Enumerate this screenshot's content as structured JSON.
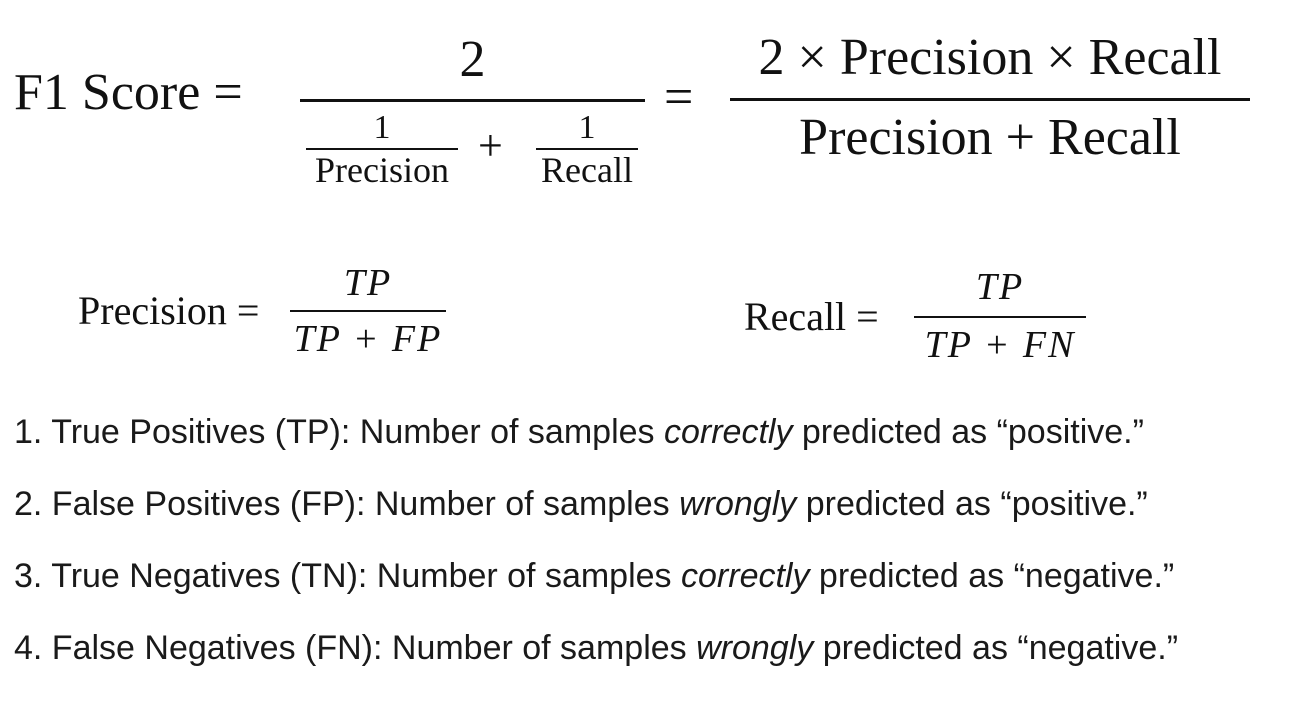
{
  "f1": {
    "lhs": "F1 Score =",
    "equals": "=",
    "numerator": "2",
    "frac1_num": "1",
    "frac1_den": "Precision",
    "plus": "+",
    "frac2_num": "1",
    "frac2_den": "Recall",
    "right_numerator": "2 × Precision × Recall",
    "right_denominator": "Precision + Recall"
  },
  "precision": {
    "label": "Precision =",
    "numerator": "TP",
    "denominator": "TP + FP"
  },
  "recall": {
    "label": "Recall =",
    "numerator": "TP",
    "denominator": "TP + FN"
  },
  "definitions": [
    {
      "prefix": "1. True Positives (TP): Number of samples ",
      "emphasis": "correctly",
      "suffix": " predicted as “positive.”"
    },
    {
      "prefix": "2. False Positives (FP): Number of samples ",
      "emphasis": "wrongly",
      "suffix": " predicted as “positive.”"
    },
    {
      "prefix": "3. True Negatives (TN): Number of samples ",
      "emphasis": "correctly",
      "suffix": " predicted as “negative.”"
    },
    {
      "prefix": "4. False Negatives (FN): Number of samples ",
      "emphasis": "wrongly",
      "suffix": " predicted as “negative.”"
    }
  ]
}
